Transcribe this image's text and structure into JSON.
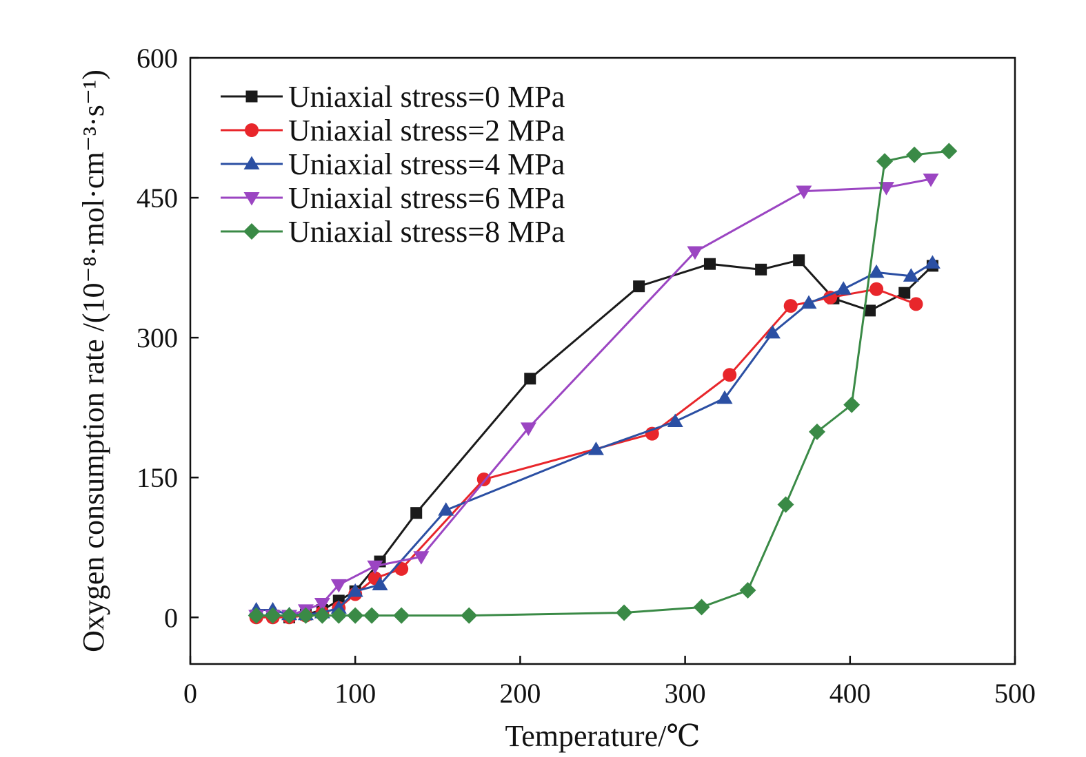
{
  "chart_data": {
    "type": "line",
    "title": "",
    "xlabel": "Temperature/℃",
    "ylabel": "Oxygen consumption rate /(10⁻⁸·mol·cm⁻³·s⁻¹)",
    "xlim": [
      0,
      500
    ],
    "ylim": [
      -50,
      600
    ],
    "xticks": [
      0,
      100,
      200,
      300,
      400,
      500
    ],
    "yticks": [
      0,
      150,
      300,
      450,
      600
    ],
    "xtick_labels": [
      "0",
      "100",
      "200",
      "300",
      "400",
      "500"
    ],
    "ytick_labels": [
      "0",
      "150",
      "300",
      "450",
      "600"
    ],
    "grid": false,
    "legend_position": "top-left",
    "series": [
      {
        "name": "Uniaxial stress=0 MPa",
        "color": "#1a1a1a",
        "marker": "square",
        "x": [
          40,
          50,
          60,
          70,
          80,
          90,
          100,
          115,
          137,
          206,
          272,
          315,
          346,
          369,
          390,
          412,
          433,
          450
        ],
        "y": [
          2,
          2,
          0,
          3,
          8,
          18,
          28,
          60,
          112,
          256,
          355,
          379,
          373,
          383,
          342,
          329,
          348,
          377
        ]
      },
      {
        "name": "Uniaxial stress=2 MPa",
        "color": "#e8262b",
        "marker": "circle",
        "x": [
          40,
          50,
          60,
          70,
          80,
          90,
          100,
          112,
          128,
          178,
          280,
          327,
          364,
          388,
          416,
          440
        ],
        "y": [
          0,
          0,
          0,
          2,
          5,
          10,
          25,
          42,
          52,
          148,
          197,
          260,
          334,
          343,
          352,
          336
        ]
      },
      {
        "name": "Uniaxial stress=4 MPa",
        "color": "#2b4fa3",
        "marker": "triangle-up",
        "x": [
          40,
          50,
          60,
          70,
          80,
          90,
          100,
          115,
          155,
          246,
          294,
          324,
          353,
          375,
          396,
          416,
          437,
          450
        ],
        "y": [
          8,
          8,
          3,
          3,
          5,
          10,
          28,
          35,
          115,
          180,
          210,
          235,
          305,
          337,
          352,
          370,
          366,
          380
        ]
      },
      {
        "name": "Uniaxial stress=6 MPa",
        "color": "#9b45c2",
        "marker": "triangle-down",
        "x": [
          40,
          50,
          60,
          70,
          80,
          90,
          112,
          140,
          205,
          306,
          372,
          422,
          449
        ],
        "y": [
          2,
          2,
          2,
          8,
          15,
          35,
          55,
          65,
          203,
          392,
          457,
          461,
          470
        ]
      },
      {
        "name": "Uniaxial stress=8 MPa",
        "color": "#3a8a46",
        "marker": "diamond",
        "x": [
          40,
          50,
          60,
          70,
          80,
          90,
          100,
          110,
          128,
          169,
          263,
          310,
          338,
          361,
          380,
          401,
          421,
          439,
          460
        ],
        "y": [
          2,
          2,
          2,
          2,
          2,
          2,
          2,
          2,
          2,
          2,
          5,
          11,
          29,
          121,
          199,
          228,
          489,
          496,
          500
        ]
      }
    ]
  }
}
